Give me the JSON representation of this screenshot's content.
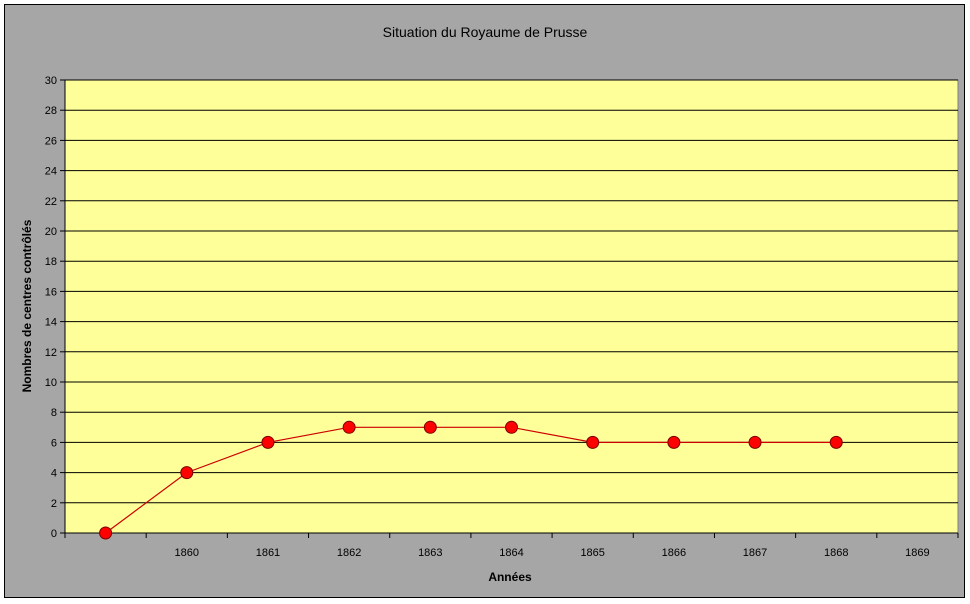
{
  "chart_data": {
    "type": "line",
    "title": "Situation du Royaume de Prusse",
    "xlabel": "Années",
    "ylabel": "Nombres de centres contrôlés",
    "categories": [
      "",
      "1860",
      "1861",
      "1862",
      "1863",
      "1864",
      "1865",
      "1866",
      "1867",
      "1868",
      "1869"
    ],
    "series": [
      {
        "values": [
          0,
          4,
          6,
          7,
          7,
          7,
          6,
          6,
          6,
          6,
          null
        ]
      }
    ],
    "ylim": [
      0,
      30
    ],
    "ytick_step": 2,
    "grid": true,
    "legend": "none",
    "colors": {
      "frame_background": "#a6a6a6",
      "plot_background": "#ffff99",
      "gridline": "#000000",
      "series_line": "#cc0000",
      "marker_fill": "#ff0000",
      "marker_stroke": "#7a0000"
    }
  }
}
